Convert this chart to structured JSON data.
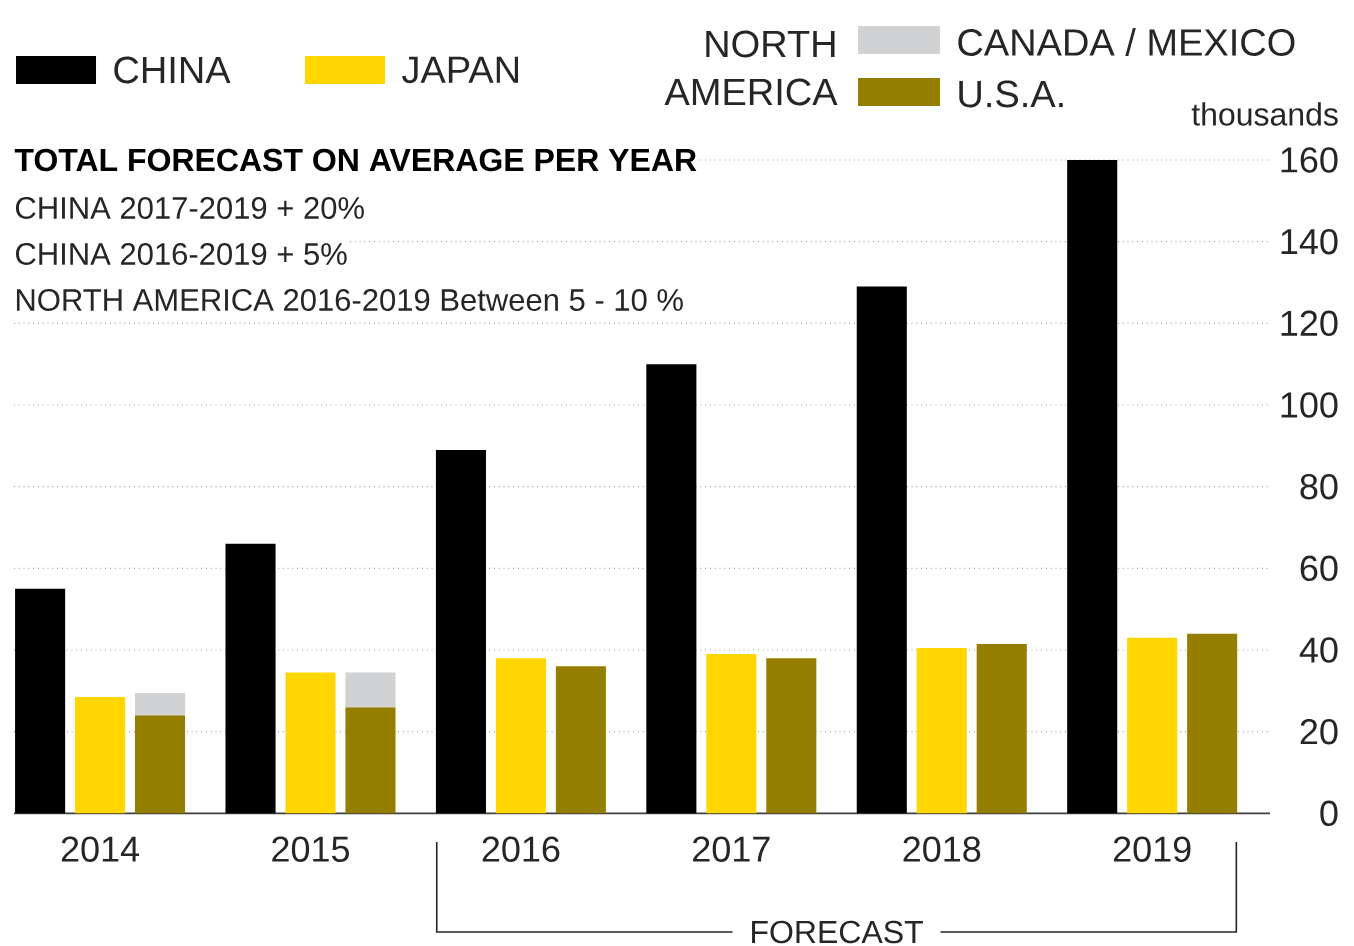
{
  "chart_data": {
    "type": "bar",
    "title": "TOTAL FORECAST ON AVERAGE PER YEAR",
    "annotations": [
      "CHINA 2017-2019 + 20%",
      "CHINA 2016-2019 + 5%",
      "NORTH AMERICA 2016-2019 Between 5 - 10 %",
      "FORECAST"
    ],
    "ylabel": "thousands",
    "legend_title": "NORTH AMERICA",
    "categories": [
      "2014",
      "2015",
      "2016",
      "2017",
      "2018",
      "2019"
    ],
    "series": [
      {
        "name": "CHINA",
        "color": "#000000",
        "values": [
          55,
          66,
          89,
          110,
          129,
          160
        ]
      },
      {
        "name": "JAPAN",
        "color": "#ffd600",
        "values": [
          28.5,
          34.5,
          38,
          39,
          40.5,
          43
        ]
      },
      {
        "name": "U.S.A.",
        "color": "#937e00",
        "values": [
          24,
          26,
          36,
          38,
          41.5,
          44
        ]
      },
      {
        "name": "CANADA / MEXICO",
        "color": "#d1d2d4",
        "base": [
          24,
          26,
          null,
          null,
          null,
          null
        ],
        "values": [
          5.5,
          8.5,
          null,
          null,
          null,
          null
        ]
      }
    ],
    "ylim": [
      0,
      160
    ],
    "yticks": [
      0,
      20,
      40,
      60,
      80,
      100,
      120,
      140,
      160
    ],
    "grid": "y",
    "legend": "top"
  }
}
